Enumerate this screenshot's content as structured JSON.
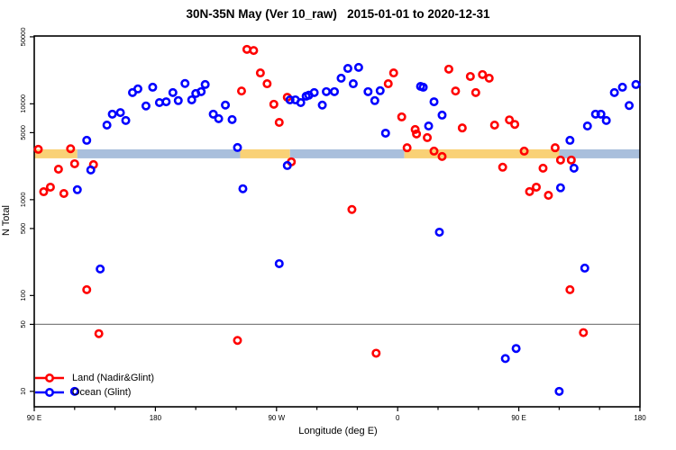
{
  "title": "30N-35N May (Ver 10_raw)   2015-01-01 to 2020-12-31",
  "chart_data": {
    "type": "scatter",
    "title": "30N-35N May (Ver 10_raw)   2015-01-01 to 2020-12-31",
    "xlabel": "Longitude (deg E)",
    "ylabel": "N Total",
    "x_axis": {
      "lim": [
        90,
        540
      ],
      "tick_positions": [
        90,
        180,
        270,
        360,
        450,
        540
      ],
      "tick_labels": [
        "90 E",
        "180",
        "90 W",
        "0",
        "90 E",
        "180"
      ],
      "minor_tick_step": 30,
      "note": "longitude wraps: 90E to 180, 90W, 0, 90E, 180"
    },
    "y_axis": {
      "scale": "log",
      "lim": [
        6.9,
        51000
      ],
      "ticks": [
        10,
        50,
        100,
        500,
        1000,
        5000,
        10000,
        50000
      ]
    },
    "reference_line": {
      "y": 50,
      "color": "#808080"
    },
    "surface_band": {
      "value_range": [
        2700,
        3350
      ],
      "colors": {
        "land": "#F9D176",
        "ocean": "#A9BFDC"
      },
      "segments": [
        {
          "type": "land",
          "from": 90,
          "to": 122
        },
        {
          "type": "ocean",
          "from": 122,
          "to": 243
        },
        {
          "type": "land",
          "from": 243,
          "to": 280
        },
        {
          "type": "ocean",
          "from": 280,
          "to": 365
        },
        {
          "type": "land",
          "from": 365,
          "to": 480
        },
        {
          "type": "ocean",
          "from": 480,
          "to": 540
        }
      ]
    },
    "series": [
      {
        "name": "Land (Nadir&Glint)",
        "color": "#ff0000",
        "marker": "open-circle",
        "points": [
          [
            93,
            3350
          ],
          [
            117,
            3400
          ],
          [
            108,
            2080
          ],
          [
            120,
            2370
          ],
          [
            134,
            2320
          ],
          [
            102,
            1350
          ],
          [
            97,
            1210
          ],
          [
            112,
            1160
          ],
          [
            129,
            115
          ],
          [
            138,
            40
          ],
          [
            241,
            34
          ],
          [
            244,
            13600
          ],
          [
            248,
            37000
          ],
          [
            253,
            36000
          ],
          [
            258,
            21000
          ],
          [
            263,
            16200
          ],
          [
            268,
            9900
          ],
          [
            272,
            6400
          ],
          [
            278,
            11700
          ],
          [
            281,
            2480
          ],
          [
            326,
            790
          ],
          [
            344,
            25
          ],
          [
            353,
            16200
          ],
          [
            357,
            21000
          ],
          [
            363,
            7300
          ],
          [
            367,
            3480
          ],
          [
            373,
            5400
          ],
          [
            374,
            4850
          ],
          [
            382,
            4440
          ],
          [
            387,
            3210
          ],
          [
            393,
            2820
          ],
          [
            398,
            23000
          ],
          [
            403,
            13600
          ],
          [
            408,
            5600
          ],
          [
            414,
            19300
          ],
          [
            418,
            13100
          ],
          [
            423,
            20200
          ],
          [
            428,
            18500
          ],
          [
            432,
            6000
          ],
          [
            438,
            2180
          ],
          [
            443,
            6800
          ],
          [
            447,
            6100
          ],
          [
            454,
            3210
          ],
          [
            458,
            1215
          ],
          [
            463,
            1350
          ],
          [
            468,
            2130
          ],
          [
            472,
            1110
          ],
          [
            477,
            3480
          ],
          [
            481,
            2590
          ],
          [
            489,
            2590
          ],
          [
            488,
            115
          ],
          [
            498,
            41
          ]
        ]
      },
      {
        "name": "Ocean (Glint)",
        "color": "#0000ff",
        "marker": "open-circle",
        "points": [
          [
            120,
            10
          ],
          [
            122,
            1270
          ],
          [
            129,
            4160
          ],
          [
            132,
            2040
          ],
          [
            139,
            189
          ],
          [
            144,
            6000
          ],
          [
            148,
            7800
          ],
          [
            154,
            8100
          ],
          [
            158,
            6700
          ],
          [
            163,
            13100
          ],
          [
            167,
            14300
          ],
          [
            173,
            9500
          ],
          [
            178,
            14900
          ],
          [
            183,
            10300
          ],
          [
            188,
            10500
          ],
          [
            193,
            13100
          ],
          [
            197,
            10800
          ],
          [
            202,
            16300
          ],
          [
            207,
            11000
          ],
          [
            210,
            12800
          ],
          [
            214,
            13400
          ],
          [
            217,
            15900
          ],
          [
            223,
            7800
          ],
          [
            227,
            7000
          ],
          [
            232,
            9700
          ],
          [
            237,
            6850
          ],
          [
            241,
            3500
          ],
          [
            245,
            1300
          ],
          [
            272,
            215
          ],
          [
            278,
            2270
          ],
          [
            280,
            11000
          ],
          [
            284,
            11000
          ],
          [
            288,
            10300
          ],
          [
            292,
            12000
          ],
          [
            294,
            12300
          ],
          [
            298,
            13100
          ],
          [
            304,
            9700
          ],
          [
            307,
            13400
          ],
          [
            313,
            13400
          ],
          [
            318,
            18500
          ],
          [
            323,
            23400
          ],
          [
            327,
            16200
          ],
          [
            331,
            24000
          ],
          [
            338,
            13400
          ],
          [
            343,
            10800
          ],
          [
            347,
            13700
          ],
          [
            351,
            4940
          ],
          [
            377,
            15200
          ],
          [
            379,
            14900
          ],
          [
            383,
            5870
          ],
          [
            387,
            10500
          ],
          [
            391,
            458
          ],
          [
            393,
            7620
          ],
          [
            440,
            22
          ],
          [
            448,
            28
          ],
          [
            480,
            10
          ],
          [
            481,
            1330
          ],
          [
            488,
            4160
          ],
          [
            491,
            2130
          ],
          [
            499,
            193
          ],
          [
            501,
            5870
          ],
          [
            507,
            7800
          ],
          [
            511,
            7800
          ],
          [
            515,
            6700
          ],
          [
            521,
            13100
          ],
          [
            527,
            14900
          ],
          [
            532,
            9600
          ],
          [
            537,
            15900
          ]
        ]
      }
    ],
    "legend_position": "bottom-left"
  }
}
